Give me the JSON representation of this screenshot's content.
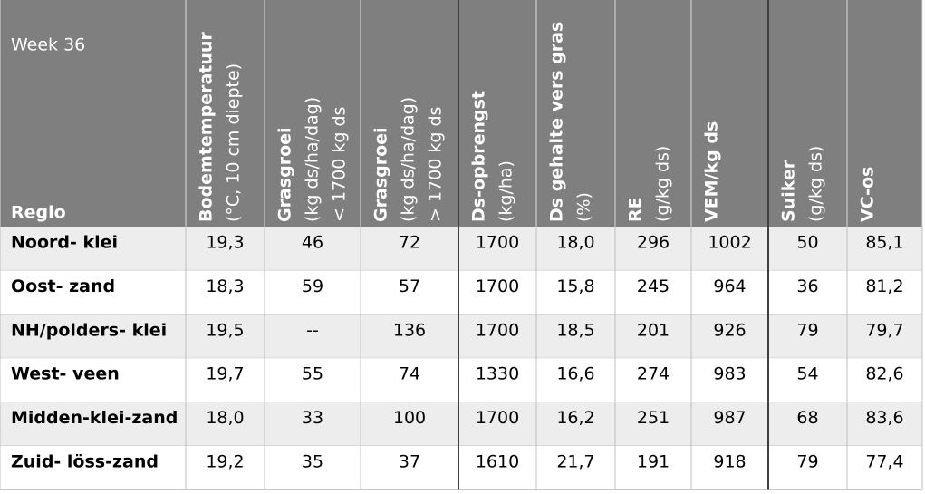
{
  "table": {
    "week": "Week 36",
    "columns": [
      {
        "title": "Regio"
      },
      {
        "title": "Bodemtemperatuur",
        "sub": [
          "(°C, 10 cm diepte)"
        ]
      },
      {
        "title": "Grasgroei",
        "sub": [
          "(kg ds/ha/dag)",
          "< 1700 kg ds"
        ]
      },
      {
        "title": "Grasgroei",
        "sub": [
          "(kg ds/ha/dag)",
          "> 1700 kg ds"
        ]
      },
      {
        "title": "Ds-opbrengst",
        "sub": [
          "(kg/ha)"
        ]
      },
      {
        "title": "Ds gehalte vers gras",
        "sub": [
          "(%)"
        ]
      },
      {
        "title": "RE",
        "sub": [
          "(g/kg ds)"
        ]
      },
      {
        "title": "VEM/kg ds"
      },
      {
        "title": "Suiker",
        "sub": [
          "(g/kg ds)"
        ]
      },
      {
        "title": "VC-os"
      }
    ],
    "rows": [
      [
        "Noord- klei",
        "19,3",
        "46",
        "72",
        "1700",
        "18,0",
        "296",
        "1002",
        "50",
        "85,1"
      ],
      [
        "Oost- zand",
        "18,3",
        "59",
        "57",
        "1700",
        "15,8",
        "245",
        "964",
        "36",
        "81,2"
      ],
      [
        "NH/polders- klei",
        "19,5",
        "--",
        "136",
        "1700",
        "18,5",
        "201",
        "926",
        "79",
        "79,7"
      ],
      [
        "West- veen",
        "19,7",
        "55",
        "74",
        "1330",
        "16,6",
        "274",
        "983",
        "54",
        "82,6"
      ],
      [
        "Midden-klei-zand",
        "18,0",
        "33",
        "100",
        "1700",
        "16,2",
        "251",
        "987",
        "68",
        "83,6"
      ],
      [
        "Zuid- löss-zand",
        "19,2",
        "35",
        "37",
        "1610",
        "21,7",
        "191",
        "918",
        "79",
        "77,4"
      ]
    ]
  }
}
